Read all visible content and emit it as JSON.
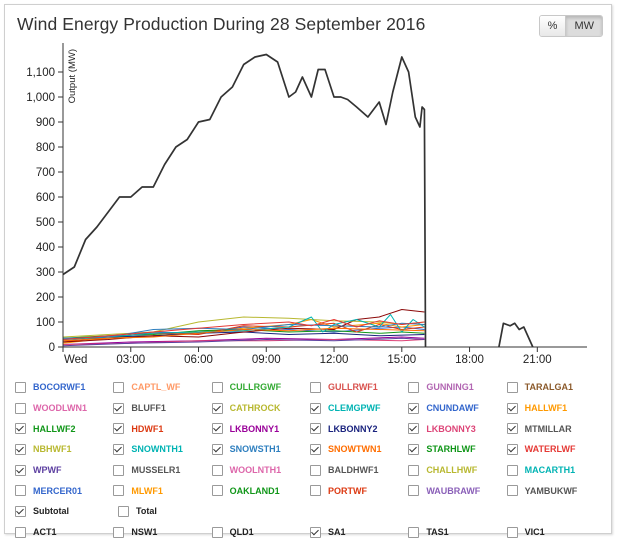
{
  "title": "Wind Energy Production During 28 September 2016",
  "unit_buttons": [
    {
      "label": "%",
      "active": false
    },
    {
      "label": "MW",
      "active": true
    }
  ],
  "chart_data": {
    "type": "line",
    "ylabel": "Output (MW)",
    "ylim": [
      0,
      1200
    ],
    "yticks": [
      0,
      100,
      200,
      300,
      400,
      500,
      600,
      700,
      800,
      900,
      1000,
      1100
    ],
    "ytick_labels": [
      "0",
      "100",
      "200",
      "300",
      "400",
      "500",
      "600",
      "700",
      "800",
      "900",
      "1,000",
      "1,100"
    ],
    "xlim": [
      0,
      23.2
    ],
    "xticks": [
      0,
      3,
      6,
      9,
      12,
      15,
      18,
      21
    ],
    "xtick_labels": [
      "Wed",
      "03:00",
      "06:00",
      "09:00",
      "12:00",
      "15:00",
      "18:00",
      "21:00"
    ],
    "x_unit": "hour",
    "grid": false,
    "series": [
      {
        "name": "Subtotal",
        "color": "#333333",
        "width": 1.7,
        "x": [
          0,
          0.5,
          1,
          1.5,
          2,
          2.5,
          3,
          3.5,
          4,
          4.5,
          5,
          5.5,
          6,
          6.5,
          7,
          7.5,
          8,
          8.5,
          9,
          9.5,
          10,
          10.3,
          10.6,
          11,
          11.3,
          11.6,
          12,
          12.3,
          12.6,
          13,
          13.5,
          14,
          14.3,
          14.6,
          15,
          15.3,
          15.6,
          15.8,
          15.9,
          16.0,
          16.05
        ],
        "y": [
          290,
          320,
          430,
          480,
          540,
          600,
          600,
          640,
          640,
          730,
          800,
          830,
          900,
          910,
          1000,
          1040,
          1130,
          1160,
          1170,
          1140,
          1000,
          1020,
          1080,
          1000,
          1110,
          1110,
          1000,
          1000,
          990,
          960,
          920,
          980,
          890,
          1020,
          1160,
          1100,
          920,
          880,
          960,
          950,
          0
        ]
      },
      {
        "name": "Subtotal",
        "color": "#333333",
        "width": 1.7,
        "x": [
          19.3,
          19.5,
          19.8,
          20.0,
          20.2,
          20.4,
          20.6,
          20.8
        ],
        "y": [
          0,
          95,
          85,
          95,
          70,
          80,
          40,
          0
        ]
      },
      {
        "name": "CNUNDAWF",
        "color": "#3366cc",
        "width": 1,
        "x": [
          0,
          2,
          4,
          6,
          8,
          10,
          12,
          14,
          15,
          16
        ],
        "y": [
          25,
          35,
          60,
          55,
          80,
          70,
          60,
          75,
          80,
          70
        ]
      },
      {
        "name": "HALLWF1",
        "color": "#ff9900",
        "width": 1,
        "x": [
          0,
          2,
          4,
          6,
          8,
          10,
          11,
          12,
          14,
          15,
          16
        ],
        "y": [
          15,
          35,
          45,
          60,
          75,
          90,
          110,
          80,
          95,
          80,
          90
        ]
      },
      {
        "name": "HALLWF2",
        "color": "#109618",
        "width": 1,
        "x": [
          0,
          2,
          4,
          6,
          8,
          10,
          12,
          14,
          15,
          16
        ],
        "y": [
          35,
          45,
          50,
          65,
          70,
          60,
          65,
          55,
          60,
          55
        ]
      },
      {
        "name": "HDWF1",
        "color": "#dc3912",
        "width": 1,
        "x": [
          0,
          2,
          4,
          6,
          8,
          10,
          12,
          13,
          14,
          15,
          16
        ],
        "y": [
          20,
          40,
          55,
          50,
          85,
          80,
          95,
          60,
          90,
          70,
          80
        ]
      },
      {
        "name": "LKBONNY1",
        "color": "#990099",
        "width": 1,
        "x": [
          0,
          3,
          6,
          9,
          12,
          15,
          16
        ],
        "y": [
          10,
          20,
          25,
          35,
          30,
          40,
          35
        ]
      },
      {
        "name": "LKBONNY2",
        "color": "#1a237e",
        "width": 1,
        "x": [
          0,
          2,
          4,
          6,
          8,
          10,
          12,
          14,
          16
        ],
        "y": [
          30,
          40,
          45,
          55,
          60,
          50,
          55,
          45,
          50
        ]
      },
      {
        "name": "LKBONNY3",
        "color": "#dd4477",
        "width": 1,
        "x": [
          0,
          3,
          6,
          9,
          12,
          15,
          16
        ],
        "y": [
          10,
          15,
          25,
          25,
          30,
          25,
          30
        ]
      },
      {
        "name": "MTMILLAR",
        "color": "#8b0707",
        "width": 1,
        "x": [
          0,
          2,
          4,
          6,
          8,
          10,
          12,
          13,
          14,
          15,
          16
        ],
        "y": [
          20,
          30,
          45,
          40,
          60,
          75,
          70,
          110,
          120,
          150,
          140
        ]
      },
      {
        "name": "NBHWF1",
        "color": "#b8b830",
        "width": 1,
        "x": [
          0,
          2,
          4,
          6,
          8,
          10,
          12,
          14,
          15,
          16
        ],
        "y": [
          40,
          50,
          60,
          100,
          120,
          115,
          105,
          100,
          90,
          100
        ]
      },
      {
        "name": "SNOWNTH1",
        "color": "#00b3b3",
        "width": 1,
        "x": [
          0,
          2,
          4,
          6,
          8,
          10,
          11,
          11.5,
          12,
          13,
          14,
          14.5,
          15,
          15.5,
          16
        ],
        "y": [
          30,
          40,
          55,
          60,
          65,
          80,
          120,
          60,
          90,
          110,
          80,
          130,
          60,
          110,
          80
        ]
      },
      {
        "name": "SNOWSTH1",
        "color": "#2e7fbf",
        "width": 1,
        "x": [
          0,
          2,
          4,
          6,
          8,
          10,
          12,
          14,
          15,
          16
        ],
        "y": [
          35,
          40,
          70,
          75,
          70,
          90,
          85,
          80,
          95,
          90
        ]
      },
      {
        "name": "SNOWTWN1",
        "color": "#ff6d00",
        "width": 1,
        "x": [
          0,
          2,
          4,
          6,
          8,
          10,
          12,
          14,
          16
        ],
        "y": [
          25,
          35,
          40,
          55,
          70,
          65,
          75,
          70,
          65
        ]
      },
      {
        "name": "WATERLWF",
        "color": "#e53935",
        "width": 1,
        "x": [
          0,
          2,
          4,
          6,
          8,
          10,
          11,
          12,
          13,
          14,
          15,
          16
        ],
        "y": [
          30,
          45,
          60,
          75,
          90,
          100,
          85,
          110,
          80,
          105,
          90,
          100
        ]
      },
      {
        "name": "WPWF",
        "color": "#5c3fa0",
        "width": 1,
        "x": [
          0,
          3,
          6,
          9,
          12,
          15,
          16
        ],
        "y": [
          5,
          15,
          20,
          30,
          25,
          35,
          30
        ]
      }
    ]
  },
  "legend": {
    "rows": [
      [
        {
          "label": "BOCORWF1",
          "color": "#3366cc",
          "checked": false
        },
        {
          "label": "CAPTL_WF",
          "color": "#ff9966",
          "checked": false
        },
        {
          "label": "CULLRGWF",
          "color": "#33aa33",
          "checked": false
        },
        {
          "label": "GULLRWF1",
          "color": "#d9534f",
          "checked": false
        },
        {
          "label": "GUNNING1",
          "color": "#b266b2",
          "checked": false
        },
        {
          "label": "TARALGA1",
          "color": "#8b5a2b",
          "checked": false
        }
      ],
      [
        {
          "label": "WOODLWN1",
          "color": "#dd66aa",
          "checked": false
        },
        {
          "label": "BLUFF1",
          "color": "#555555",
          "checked": true
        },
        {
          "label": "CATHROCK",
          "color": "#b8b830",
          "checked": true
        },
        {
          "label": "CLEMGPWF",
          "color": "#00b3b3",
          "checked": true
        },
        {
          "label": "CNUNDAWF",
          "color": "#3366cc",
          "checked": true
        },
        {
          "label": "HALLWF1",
          "color": "#ff9900",
          "checked": true
        }
      ],
      [
        {
          "label": "HALLWF2",
          "color": "#109618",
          "checked": true
        },
        {
          "label": "HDWF1",
          "color": "#dc3912",
          "checked": true
        },
        {
          "label": "LKBONNY1",
          "color": "#990099",
          "checked": true
        },
        {
          "label": "LKBONNY2",
          "color": "#1a237e",
          "checked": true
        },
        {
          "label": "LKBONNY3",
          "color": "#dd4477",
          "checked": true
        },
        {
          "label": "MTMILLAR",
          "color": "#555555",
          "checked": true
        }
      ],
      [
        {
          "label": "NBHWF1",
          "color": "#b8b830",
          "checked": true
        },
        {
          "label": "SNOWNTH1",
          "color": "#00b3b3",
          "checked": true
        },
        {
          "label": "SNOWSTH1",
          "color": "#2e7fbf",
          "checked": true
        },
        {
          "label": "SNOWTWN1",
          "color": "#ff6d00",
          "checked": true
        },
        {
          "label": "STARHLWF",
          "color": "#109618",
          "checked": true
        },
        {
          "label": "WATERLWF",
          "color": "#e53935",
          "checked": true
        }
      ],
      [
        {
          "label": "WPWF",
          "color": "#5c3fa0",
          "checked": true
        },
        {
          "label": "MUSSELR1",
          "color": "#555555",
          "checked": false
        },
        {
          "label": "WOOLNTH1",
          "color": "#dd66aa",
          "checked": false
        },
        {
          "label": "BALDHWF1",
          "color": "#555555",
          "checked": false
        },
        {
          "label": "CHALLHWF",
          "color": "#b8b830",
          "checked": false
        },
        {
          "label": "MACARTH1",
          "color": "#00b3b3",
          "checked": false
        }
      ],
      [
        {
          "label": "MERCER01",
          "color": "#3366cc",
          "checked": false
        },
        {
          "label": "MLWF1",
          "color": "#ff9900",
          "checked": false
        },
        {
          "label": "OAKLAND1",
          "color": "#109618",
          "checked": false
        },
        {
          "label": "PORTWF",
          "color": "#dc3912",
          "checked": false
        },
        {
          "label": "WAUBRAWF",
          "color": "#8a5fb8",
          "checked": false
        },
        {
          "label": "YAMBUKWF",
          "color": "#555555",
          "checked": false
        }
      ],
      [
        {
          "label": "Subtotal",
          "color": "#222222",
          "checked": true
        },
        {
          "label": "Total",
          "color": "#222222",
          "checked": false
        }
      ],
      [
        {
          "label": "ACT1",
          "color": "#222222",
          "checked": false
        },
        {
          "label": "NSW1",
          "color": "#222222",
          "checked": false
        },
        {
          "label": "QLD1",
          "color": "#222222",
          "checked": false
        },
        {
          "label": "SA1",
          "color": "#222222",
          "checked": true
        },
        {
          "label": "TAS1",
          "color": "#222222",
          "checked": false
        },
        {
          "label": "VIC1",
          "color": "#222222",
          "checked": false
        }
      ]
    ]
  }
}
